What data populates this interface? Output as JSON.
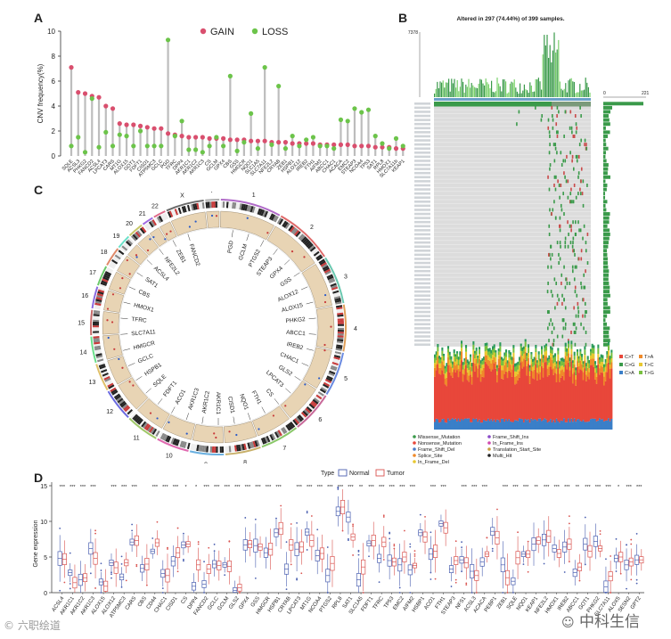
{
  "panels": {
    "a": "A",
    "b": "B",
    "c": "C",
    "d": "D"
  },
  "colors": {
    "gain": "#d94f6e",
    "loss": "#6cc44a",
    "stem": "#bdbdbd",
    "normal": "#4a5fb0",
    "tumor": "#d9534f",
    "chrom": "#e8d4b4",
    "matrix_bg": "#dcdcdc",
    "mut_green": "#3a9a4a",
    "mut_red": "#c94a4a"
  },
  "chart_data": [
    {
      "type": "scatter",
      "panel": "A",
      "ylabel": "CNV frequency(%)",
      "ylim": [
        0,
        10
      ],
      "yticks": [
        "0",
        "2",
        "4",
        "6",
        "8",
        "10"
      ],
      "legend": [
        "GAIN",
        "LOSS"
      ],
      "genes": [
        "SQLE",
        "ACSL3",
        "PHKG2",
        "FANCD2",
        "ACSL4",
        "LPCAT3",
        "CARS",
        "MT1G",
        "ALOX15",
        "GOT1",
        "FDFT1",
        "CISD1",
        "ATP5MC3",
        "GCLC",
        "PGD",
        "TFRC",
        "DPP4",
        "AKR1C1",
        "AKR1C2",
        "AKR1C3",
        "CS",
        "GCLM",
        "GPX4",
        "CBS",
        "GSS",
        "HMGCR",
        "NQO1",
        "SLC1A5",
        "SLC7A11",
        "NFE2L2",
        "CRYAB",
        "ZEB1",
        "HSPB1",
        "ALOX12",
        "IREB2",
        "FTH1",
        "AIFM2",
        "ABCC1",
        "CHAC1",
        "ACACA",
        "EMC2",
        "STEAP3",
        "NCOA4",
        "TP53",
        "SAT1",
        "RPL8",
        "HMOX1",
        "SLC7A11b",
        "KEAP1"
      ],
      "gain": [
        7.1,
        5.1,
        5.0,
        4.8,
        4.7,
        4.0,
        3.8,
        2.6,
        2.5,
        2.5,
        2.4,
        2.3,
        2.2,
        2.2,
        1.8,
        1.7,
        1.6,
        1.5,
        1.5,
        1.5,
        1.4,
        1.4,
        1.4,
        1.3,
        1.3,
        1.3,
        1.2,
        1.2,
        1.2,
        1.1,
        1.1,
        1.1,
        1.0,
        1.0,
        1.0,
        1.0,
        0.9,
        0.9,
        0.9,
        0.9,
        0.9,
        0.8,
        0.8,
        0.8,
        0.7,
        0.7,
        0.7,
        0.6,
        0.6
      ],
      "loss": [
        0.8,
        1.5,
        0.3,
        4.6,
        0.7,
        1.9,
        0.8,
        1.7,
        1.6,
        0.8,
        2.0,
        0.8,
        0.8,
        0.8,
        9.3,
        1.6,
        2.8,
        0.5,
        0.5,
        0.3,
        0.8,
        1.5,
        0.8,
        6.4,
        0.4,
        1.1,
        3.4,
        0.6,
        7.1,
        0.9,
        5.6,
        0.6,
        1.6,
        0.8,
        1.3,
        1.5,
        0.8,
        0.8,
        0.6,
        2.9,
        2.8,
        3.8,
        3.5,
        3.7,
        1.6,
        1.0,
        0.6,
        1.4,
        0.8
      ]
    },
    {
      "type": "heatmap",
      "panel": "B",
      "title": "Altered in 297 (74.44%) of 399 samples.",
      "top_max": "7378",
      "side_ticks": [
        "0",
        "221"
      ],
      "legend_substitutions": [
        "C>T",
        "C>G",
        "C>A",
        "T>A",
        "T>C",
        "T>G"
      ],
      "legend_variants": [
        "Missense_Mutation",
        "Nonsense_Mutation",
        "Frame_Shift_Del",
        "Splice_Site",
        "In_Frame_Del",
        "Frame_Shift_Ins",
        "In_Frame_Ins",
        "Translation_Start_Site",
        "Multi_Hit"
      ]
    },
    {
      "type": "other",
      "panel": "C",
      "chromosomes": [
        "1",
        "2",
        "3",
        "4",
        "5",
        "6",
        "7",
        "8",
        "9",
        "10",
        "11",
        "12",
        "13",
        "14",
        "15",
        "16",
        "17",
        "18",
        "19",
        "20",
        "21",
        "22",
        "X",
        "Y"
      ],
      "genes": [
        "PGD",
        "GCLM",
        "PTGS2",
        "STEAP3",
        "GPX4",
        "GSS",
        "ALOX12",
        "ALOX15",
        "PHKG2",
        "ABCC1",
        "IREB2",
        "CHAC1",
        "GLS2",
        "LPCAT3",
        "CS",
        "FTH1",
        "NQO1",
        "CISD1",
        "AKR1C1",
        "AKR1C2",
        "AKR1C3",
        "ACO1",
        "FDFT1",
        "SQLE",
        "HSPB1",
        "GCLC",
        "HMGCR",
        "SLC7A11",
        "TFRC",
        "HMOX1",
        "CBS",
        "SAT1",
        "ACSL4",
        "NFE2L2",
        "ZEB1",
        "FANCD2"
      ]
    },
    {
      "type": "bar",
      "panel": "D",
      "ylabel": "Gene expression",
      "ylim": [
        0,
        15
      ],
      "yticks": [
        "0",
        "5",
        "10",
        "15"
      ],
      "legend_title": "Type",
      "legend": [
        "Normal",
        "Tumor"
      ],
      "genes": [
        "ACSL4",
        "AKR1C1",
        "AKR1C2",
        "AKR1C3",
        "ALOX15",
        "ALOX12",
        "ATP5MC3",
        "CARS",
        "CBS",
        "CD44",
        "CHAC1",
        "CISD1",
        "CS",
        "DPP4",
        "FANCD2",
        "GCLC",
        "GCLM",
        "GLS2",
        "GPX4",
        "GSS",
        "HMGCR",
        "HSPB1",
        "CRYAB",
        "LPCAT3",
        "MT1G",
        "NCOA4",
        "PTGS2",
        "RPL8",
        "SAT1",
        "SLC1A5",
        "FDFT1",
        "TFRC",
        "TP53",
        "EMC2",
        "AIFM2",
        "HSBP1",
        "ACO1",
        "FTH1",
        "STEAP3",
        "NFS1",
        "ACSL3",
        "ACACA",
        "PEBP1",
        "ZEB1",
        "SQLE",
        "NQO1",
        "KEAP1",
        "NFE2L2",
        "HMOX1",
        "IREB2",
        "ABCC1",
        "GOT1",
        "PHKG2",
        "SLC7A11",
        "ALOX5",
        "SESN2",
        "GPT2"
      ],
      "normal": [
        4.8,
        2.8,
        1.8,
        6.2,
        1.5,
        4.2,
        2.2,
        7.1,
        3.4,
        5.8,
        2.7,
        4.4,
        6.7,
        0.9,
        1.2,
        4.0,
        3.9,
        0.3,
        6.7,
        6.6,
        5.6,
        8.4,
        3.3,
        6.1,
        8.5,
        5.2,
        2.4,
        11.4,
        10.6,
        1.8,
        6.9,
        4.8,
        4.5,
        3.9,
        3.2,
        8.4,
        5.4,
        9.7,
        3.3,
        4.6,
        3.0,
        4.3,
        8.6,
        3.9,
        1.6,
        5.4,
        6.8,
        7.4,
        6.2,
        6.4,
        2.8,
        6.8,
        7.2,
        0.8,
        4.8,
        3.9,
        4.6
      ],
      "tumor": [
        4.7,
        1.4,
        2.1,
        4.8,
        0.9,
        3.5,
        4.2,
        7.3,
        4.0,
        7.0,
        2.4,
        5.6,
        6.8,
        3.9,
        3.3,
        3.8,
        3.7,
        0.7,
        6.8,
        6.4,
        6.1,
        9.0,
        6.7,
        6.4,
        7.3,
        5.5,
        4.1,
        12.0,
        7.8,
        3.6,
        7.3,
        7.1,
        4.3,
        5.0,
        3.8,
        7.8,
        5.8,
        9.1,
        4.5,
        4.2,
        2.4,
        5.4,
        7.7,
        2.1,
        4.9,
        5.4,
        7.3,
        7.9,
        5.5,
        6.8,
        3.6,
        5.8,
        6.2,
        2.3,
        5.0,
        4.3,
        4.6
      ],
      "signif": [
        "***",
        "***",
        "***",
        "***",
        "",
        "***",
        "***",
        "***",
        "",
        "***",
        "***",
        "***",
        "*",
        "*",
        "***",
        "***",
        "***",
        "***",
        "***",
        "***",
        "***",
        "***",
        "",
        "***",
        "***",
        "***",
        "***",
        "***",
        "***",
        "**",
        "***",
        "***",
        "***",
        "***",
        "***",
        "",
        "***",
        "***",
        "",
        "***",
        "***",
        "***",
        "",
        "***",
        "***",
        "***",
        "**",
        "***",
        "***",
        "***",
        "**",
        "***",
        "***",
        "***",
        "*",
        "***",
        "***"
      ]
    }
  ],
  "watermarks": {
    "left": "六职绘道",
    "right": "中科生信"
  }
}
